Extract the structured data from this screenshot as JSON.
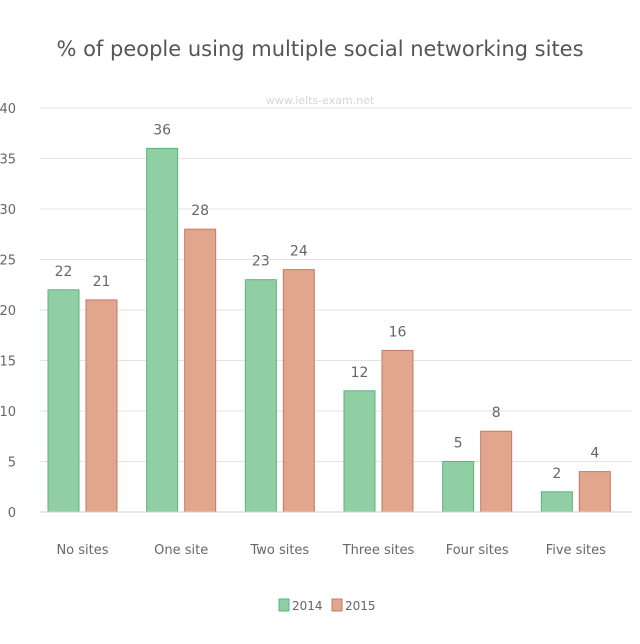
{
  "chart_data": {
    "type": "bar",
    "title": "% of people using multiple social networking sites",
    "watermark": "www.ielts-exam.net",
    "categories": [
      "No sites",
      "One site",
      "Two sites",
      "Three sites",
      "Four sites",
      "Five sites"
    ],
    "series": [
      {
        "name": "2014",
        "values": [
          22,
          36,
          23,
          12,
          5,
          2
        ],
        "color": "#8fcfa3",
        "stroke": "#5fb07d"
      },
      {
        "name": "2015",
        "values": [
          21,
          28,
          24,
          16,
          8,
          4
        ],
        "color": "#e2a58e",
        "stroke": "#c47a62"
      }
    ],
    "ylim": [
      0,
      40
    ],
    "yticks": [
      0,
      5,
      10,
      15,
      20,
      25,
      30,
      35,
      40
    ],
    "grid": true,
    "legend_position": "bottom"
  }
}
